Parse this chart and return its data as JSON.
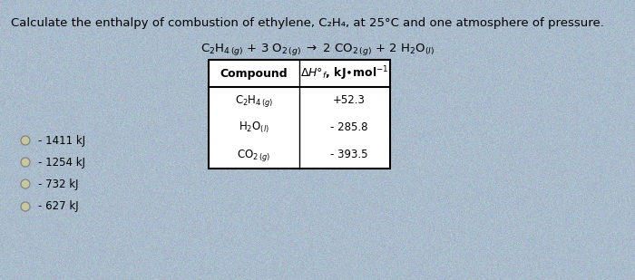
{
  "background_color": "#aabccc",
  "title_text": "Calculate the enthalpy of combustion of ethylene, C₂H₄, at 25°C and one atmosphere of pressure.",
  "table_header_col1": "Compound",
  "table_header_col2": "ΔH°f, kJ•mol⁻¹",
  "table_rows": [
    [
      "C₂H₄ (g)",
      "+52.3"
    ],
    [
      "H₂O (l)",
      "- 285.8"
    ],
    [
      "CO₂ (g)",
      "- 393.5"
    ]
  ],
  "options": [
    "- 1411 kJ",
    "- 1254 kJ",
    "- 732 kJ",
    "- 627 kJ"
  ],
  "font_size_title": 9.5,
  "font_size_eq": 9.5,
  "font_size_table_header": 9,
  "font_size_table_data": 8.5,
  "font_size_options": 8.5
}
